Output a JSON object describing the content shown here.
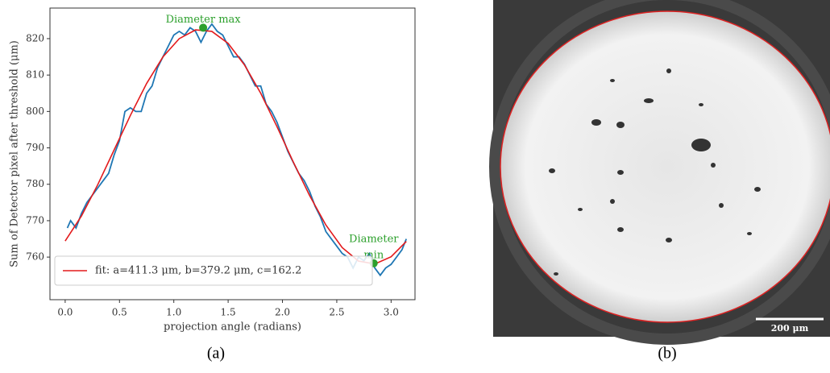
{
  "chart_data": {
    "type": "line",
    "xlabel": "projection angle (radians)",
    "ylabel": "Sum of Detector pixel after threshold (μm)",
    "xlim": [
      -0.14,
      3.22
    ],
    "ylim": [
      748.3,
      828.4
    ],
    "xticks": [
      {
        "value": 0,
        "label": "0.0"
      },
      0.5,
      {
        "value": 1,
        "label": "1.0"
      },
      1.5,
      {
        "value": 2,
        "label": "2.0"
      },
      2.5,
      {
        "value": 3,
        "label": "3.0"
      }
    ],
    "yticks": [
      760,
      770,
      780,
      790,
      800,
      810,
      820
    ],
    "legend": "lower left",
    "series": [
      {
        "color": "#1f77b4",
        "x": [
          0.02,
          0.05,
          0.1,
          0.15,
          0.2,
          0.3,
          0.35,
          0.4,
          0.45,
          0.5,
          0.55,
          0.6,
          0.65,
          0.7,
          0.75,
          0.8,
          0.85,
          0.9,
          0.95,
          1.0,
          1.05,
          1.1,
          1.15,
          1.2,
          1.25,
          1.3,
          1.35,
          1.4,
          1.45,
          1.5,
          1.55,
          1.6,
          1.65,
          1.7,
          1.75,
          1.8,
          1.85,
          1.9,
          1.95,
          2.0,
          2.05,
          2.1,
          2.15,
          2.2,
          2.25,
          2.3,
          2.35,
          2.4,
          2.45,
          2.5,
          2.55,
          2.6,
          2.65,
          2.7,
          2.75,
          2.8,
          2.85,
          2.9,
          2.95,
          3.0,
          3.05,
          3.1,
          3.14
        ],
        "values": [
          768,
          770,
          768,
          772,
          775,
          779,
          781,
          783,
          788,
          792,
          800,
          801,
          800,
          800,
          805,
          807,
          812,
          815,
          818,
          821,
          822,
          821,
          823,
          822,
          819,
          822,
          824,
          822,
          821,
          818,
          815,
          815,
          813,
          810,
          807,
          807,
          802,
          800,
          797,
          793,
          789,
          786,
          783,
          781,
          778,
          774,
          771,
          767,
          765,
          763,
          761,
          760,
          757,
          760,
          759,
          761,
          757,
          755,
          757,
          758,
          760,
          762,
          765
        ]
      },
      {
        "name": "fit: a=411.3 μm, b=379.2 μm, c=162.2",
        "color": "#e31a1c",
        "x": [
          0,
          0.15,
          0.3,
          0.45,
          0.6,
          0.75,
          0.9,
          1.05,
          1.2,
          1.35,
          1.5,
          1.65,
          1.8,
          1.95,
          2.1,
          2.25,
          2.4,
          2.55,
          2.7,
          2.85,
          3.0,
          3.14
        ],
        "values": [
          764.4,
          771.3,
          779.9,
          789.4,
          798.9,
          807.7,
          815.0,
          820.0,
          822.4,
          822.0,
          818.7,
          812.8,
          805.0,
          795.8,
          786.1,
          776.9,
          768.8,
          762.6,
          758.9,
          758.1,
          760.1,
          764.3
        ]
      }
    ],
    "annotations": [
      {
        "text": [
          "Diameter max"
        ],
        "x": 1.27,
        "y": 823,
        "color": "#2ca02c"
      },
      {
        "text": [
          "Diameter",
          "min"
        ],
        "x": 2.84,
        "y": 758.3,
        "color": "#2ca02c"
      }
    ]
  },
  "captions": [
    "(a)",
    "(b)"
  ],
  "image": {
    "scale_bar": "200 μm"
  }
}
